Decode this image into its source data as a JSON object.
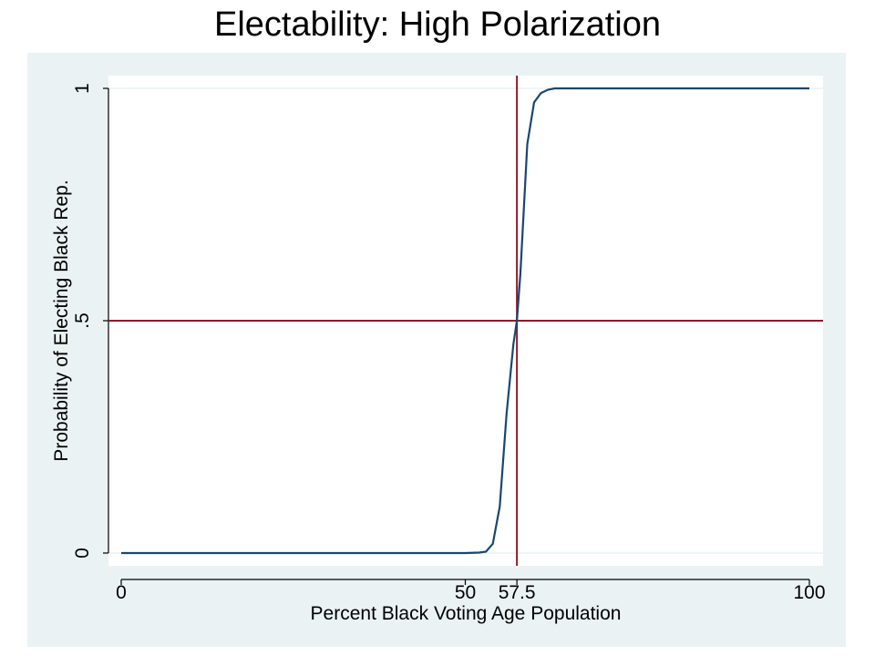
{
  "title": "Electability: High Polarization",
  "colors": {
    "background": "#eaf2f3",
    "plot_area": "#ffffff",
    "curve": "#1a476f",
    "reference_lines": "#90192d",
    "gridlines": "#eaf2f3"
  },
  "chart_data": {
    "type": "line",
    "title": "Electability: High Polarization",
    "xlabel": "Percent Black Voting Age Population",
    "ylabel": "Probability of Electing Black Rep.",
    "xlim": [
      0,
      100
    ],
    "ylim": [
      0,
      1
    ],
    "x_ticks": [
      0,
      50,
      57.5,
      100
    ],
    "x_tick_labels": [
      "0",
      "50",
      "57.5",
      "100"
    ],
    "y_ticks": [
      0,
      0.5,
      1
    ],
    "y_tick_labels": [
      "0",
      ".5",
      "1"
    ],
    "grid": "horizontal",
    "reference_lines": {
      "x": 57.5,
      "y": 0.5
    },
    "series": [
      {
        "x": [
          0,
          50,
          52,
          53,
          54,
          55,
          56,
          57,
          57.5,
          58,
          59,
          60,
          61,
          62,
          63,
          64,
          65,
          100
        ],
        "y": [
          0,
          0,
          0.001,
          0.003,
          0.02,
          0.1,
          0.3,
          0.45,
          0.5,
          0.6,
          0.88,
          0.97,
          0.99,
          0.997,
          1,
          1,
          1,
          1
        ]
      }
    ]
  }
}
